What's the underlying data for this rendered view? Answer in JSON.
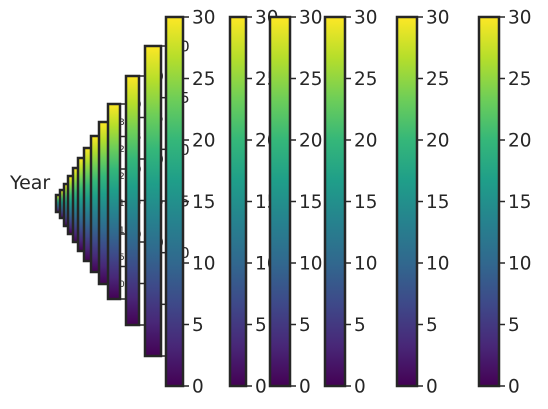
{
  "figure": {
    "ylabel": "Year"
  },
  "chart_data": {
    "type": "colorbar",
    "colormap": "viridis",
    "colormap_stops": [
      "#440154",
      "#482878",
      "#3e4989",
      "#31688e",
      "#26828e",
      "#1f9e89",
      "#35b779",
      "#6ece58",
      "#b5de2b",
      "#fde725"
    ],
    "frame_color": "#262626",
    "vmin": 0,
    "vmax": 30,
    "ticks": [
      0,
      5,
      10,
      15,
      20,
      25,
      30
    ],
    "tick_labels": [
      "0",
      "5",
      "10",
      "15",
      "20",
      "25",
      "30"
    ],
    "n_colorbars": 14,
    "layout": "nested cascade, each colorbar overlapping the previous one, shrinking toward the left",
    "ylabel": "Year",
    "note": "Outer colorbars show full labels; inner colorbars are increasingly overlapped"
  }
}
